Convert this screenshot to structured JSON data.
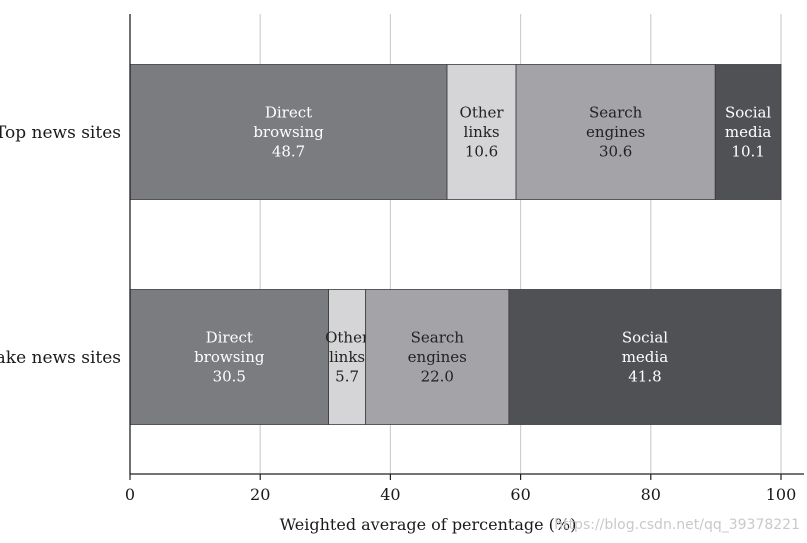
{
  "chart_data": {
    "type": "bar",
    "orientation": "horizontal",
    "stacked": true,
    "xlabel": "Weighted average of percentage (%)",
    "xlim": [
      0,
      100
    ],
    "xticks": [
      0,
      20,
      40,
      60,
      80,
      100
    ],
    "grid": true,
    "categories": [
      "Top news sites",
      "Fake news sites"
    ],
    "series": [
      {
        "name": "Direct browsing",
        "label_lines": [
          "Direct",
          "browsing"
        ],
        "values": [
          48.7,
          30.5
        ],
        "color": "#7b7c80",
        "label_color": "#ffffff"
      },
      {
        "name": "Other links",
        "label_lines": [
          "Other",
          "links"
        ],
        "values": [
          10.6,
          5.7
        ],
        "color": "#d5d5d7",
        "label_color": "#222222"
      },
      {
        "name": "Search engines",
        "label_lines": [
          "Search",
          "engines"
        ],
        "values": [
          30.6,
          22.0
        ],
        "color": "#a4a4a8",
        "label_color": "#222222"
      },
      {
        "name": "Social media",
        "label_lines": [
          "Social",
          "media"
        ],
        "values": [
          10.1,
          41.8
        ],
        "color": "#505155",
        "label_color": "#ffffff"
      }
    ]
  },
  "watermark": "https://blog.csdn.net/qq_39378221"
}
